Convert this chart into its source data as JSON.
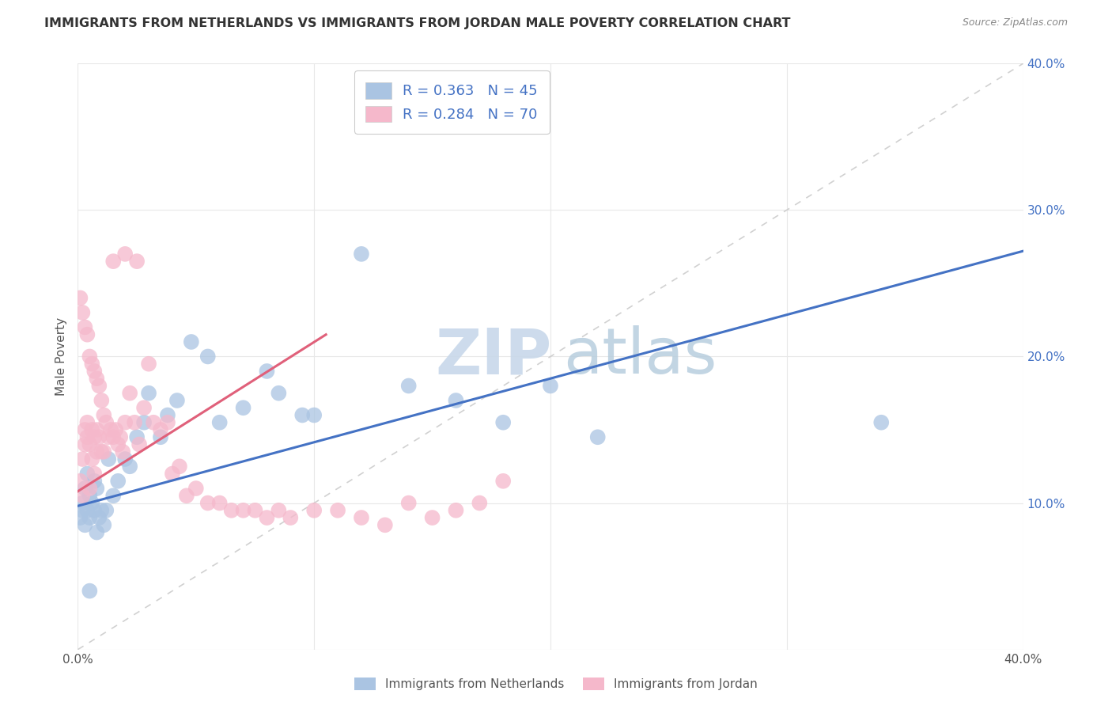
{
  "title": "IMMIGRANTS FROM NETHERLANDS VS IMMIGRANTS FROM JORDAN MALE POVERTY CORRELATION CHART",
  "source": "Source: ZipAtlas.com",
  "ylabel": "Male Poverty",
  "xlim": [
    0,
    0.4
  ],
  "ylim": [
    0,
    0.4
  ],
  "xticks": [
    0.0,
    0.1,
    0.2,
    0.3,
    0.4
  ],
  "yticks": [
    0.0,
    0.1,
    0.2,
    0.3,
    0.4
  ],
  "xticklabels": [
    "0.0%",
    "",
    "",
    "",
    "40.0%"
  ],
  "right_yticklabels": [
    "",
    "10.0%",
    "20.0%",
    "30.0%",
    "40.0%"
  ],
  "legend1_label": "R = 0.363   N = 45",
  "legend2_label": "R = 0.284   N = 70",
  "legend_color1": "#aac4e2",
  "legend_color2": "#f5b8cb",
  "scatter1_color": "#aac4e2",
  "scatter2_color": "#f5b8cb",
  "line1_color": "#4472c4",
  "line2_color": "#e0607a",
  "diagonal_color": "#cccccc",
  "watermark_color": "#c8d8ea",
  "background_color": "#ffffff",
  "grid_color": "#e8e8e8",
  "nl_x": [
    0.001,
    0.002,
    0.002,
    0.003,
    0.003,
    0.004,
    0.004,
    0.005,
    0.005,
    0.006,
    0.007,
    0.007,
    0.008,
    0.008,
    0.009,
    0.01,
    0.011,
    0.012,
    0.013,
    0.015,
    0.017,
    0.02,
    0.022,
    0.025,
    0.028,
    0.03,
    0.035,
    0.038,
    0.042,
    0.048,
    0.055,
    0.06,
    0.07,
    0.08,
    0.085,
    0.095,
    0.1,
    0.12,
    0.14,
    0.16,
    0.18,
    0.2,
    0.22,
    0.34,
    0.005
  ],
  "nl_y": [
    0.09,
    0.1,
    0.095,
    0.085,
    0.11,
    0.095,
    0.12,
    0.09,
    0.105,
    0.1,
    0.095,
    0.115,
    0.08,
    0.11,
    0.09,
    0.095,
    0.085,
    0.095,
    0.13,
    0.105,
    0.115,
    0.13,
    0.125,
    0.145,
    0.155,
    0.175,
    0.145,
    0.16,
    0.17,
    0.21,
    0.2,
    0.155,
    0.165,
    0.19,
    0.175,
    0.16,
    0.16,
    0.27,
    0.18,
    0.17,
    0.155,
    0.18,
    0.145,
    0.155,
    0.04
  ],
  "jo_x": [
    0.001,
    0.001,
    0.002,
    0.002,
    0.002,
    0.003,
    0.003,
    0.003,
    0.004,
    0.004,
    0.004,
    0.005,
    0.005,
    0.005,
    0.006,
    0.006,
    0.006,
    0.007,
    0.007,
    0.007,
    0.008,
    0.008,
    0.008,
    0.009,
    0.009,
    0.01,
    0.01,
    0.011,
    0.011,
    0.012,
    0.013,
    0.014,
    0.015,
    0.016,
    0.017,
    0.018,
    0.019,
    0.02,
    0.022,
    0.024,
    0.026,
    0.028,
    0.03,
    0.032,
    0.035,
    0.038,
    0.04,
    0.043,
    0.046,
    0.05,
    0.055,
    0.06,
    0.065,
    0.07,
    0.075,
    0.08,
    0.085,
    0.09,
    0.1,
    0.11,
    0.12,
    0.13,
    0.14,
    0.15,
    0.16,
    0.17,
    0.18,
    0.02,
    0.015,
    0.025
  ],
  "jo_y": [
    0.115,
    0.24,
    0.13,
    0.23,
    0.105,
    0.22,
    0.15,
    0.14,
    0.215,
    0.145,
    0.155,
    0.2,
    0.14,
    0.11,
    0.195,
    0.15,
    0.13,
    0.19,
    0.145,
    0.12,
    0.185,
    0.15,
    0.135,
    0.18,
    0.145,
    0.17,
    0.135,
    0.16,
    0.135,
    0.155,
    0.145,
    0.15,
    0.145,
    0.15,
    0.14,
    0.145,
    0.135,
    0.155,
    0.175,
    0.155,
    0.14,
    0.165,
    0.195,
    0.155,
    0.15,
    0.155,
    0.12,
    0.125,
    0.105,
    0.11,
    0.1,
    0.1,
    0.095,
    0.095,
    0.095,
    0.09,
    0.095,
    0.09,
    0.095,
    0.095,
    0.09,
    0.085,
    0.1,
    0.09,
    0.095,
    0.1,
    0.115,
    0.27,
    0.265,
    0.265
  ],
  "nl_line_x": [
    0.0,
    0.4
  ],
  "nl_line_y": [
    0.098,
    0.272
  ],
  "jo_line_x": [
    0.0,
    0.105
  ],
  "jo_line_y": [
    0.108,
    0.215
  ],
  "bottom_legend1": "Immigrants from Netherlands",
  "bottom_legend2": "Immigrants from Jordan"
}
